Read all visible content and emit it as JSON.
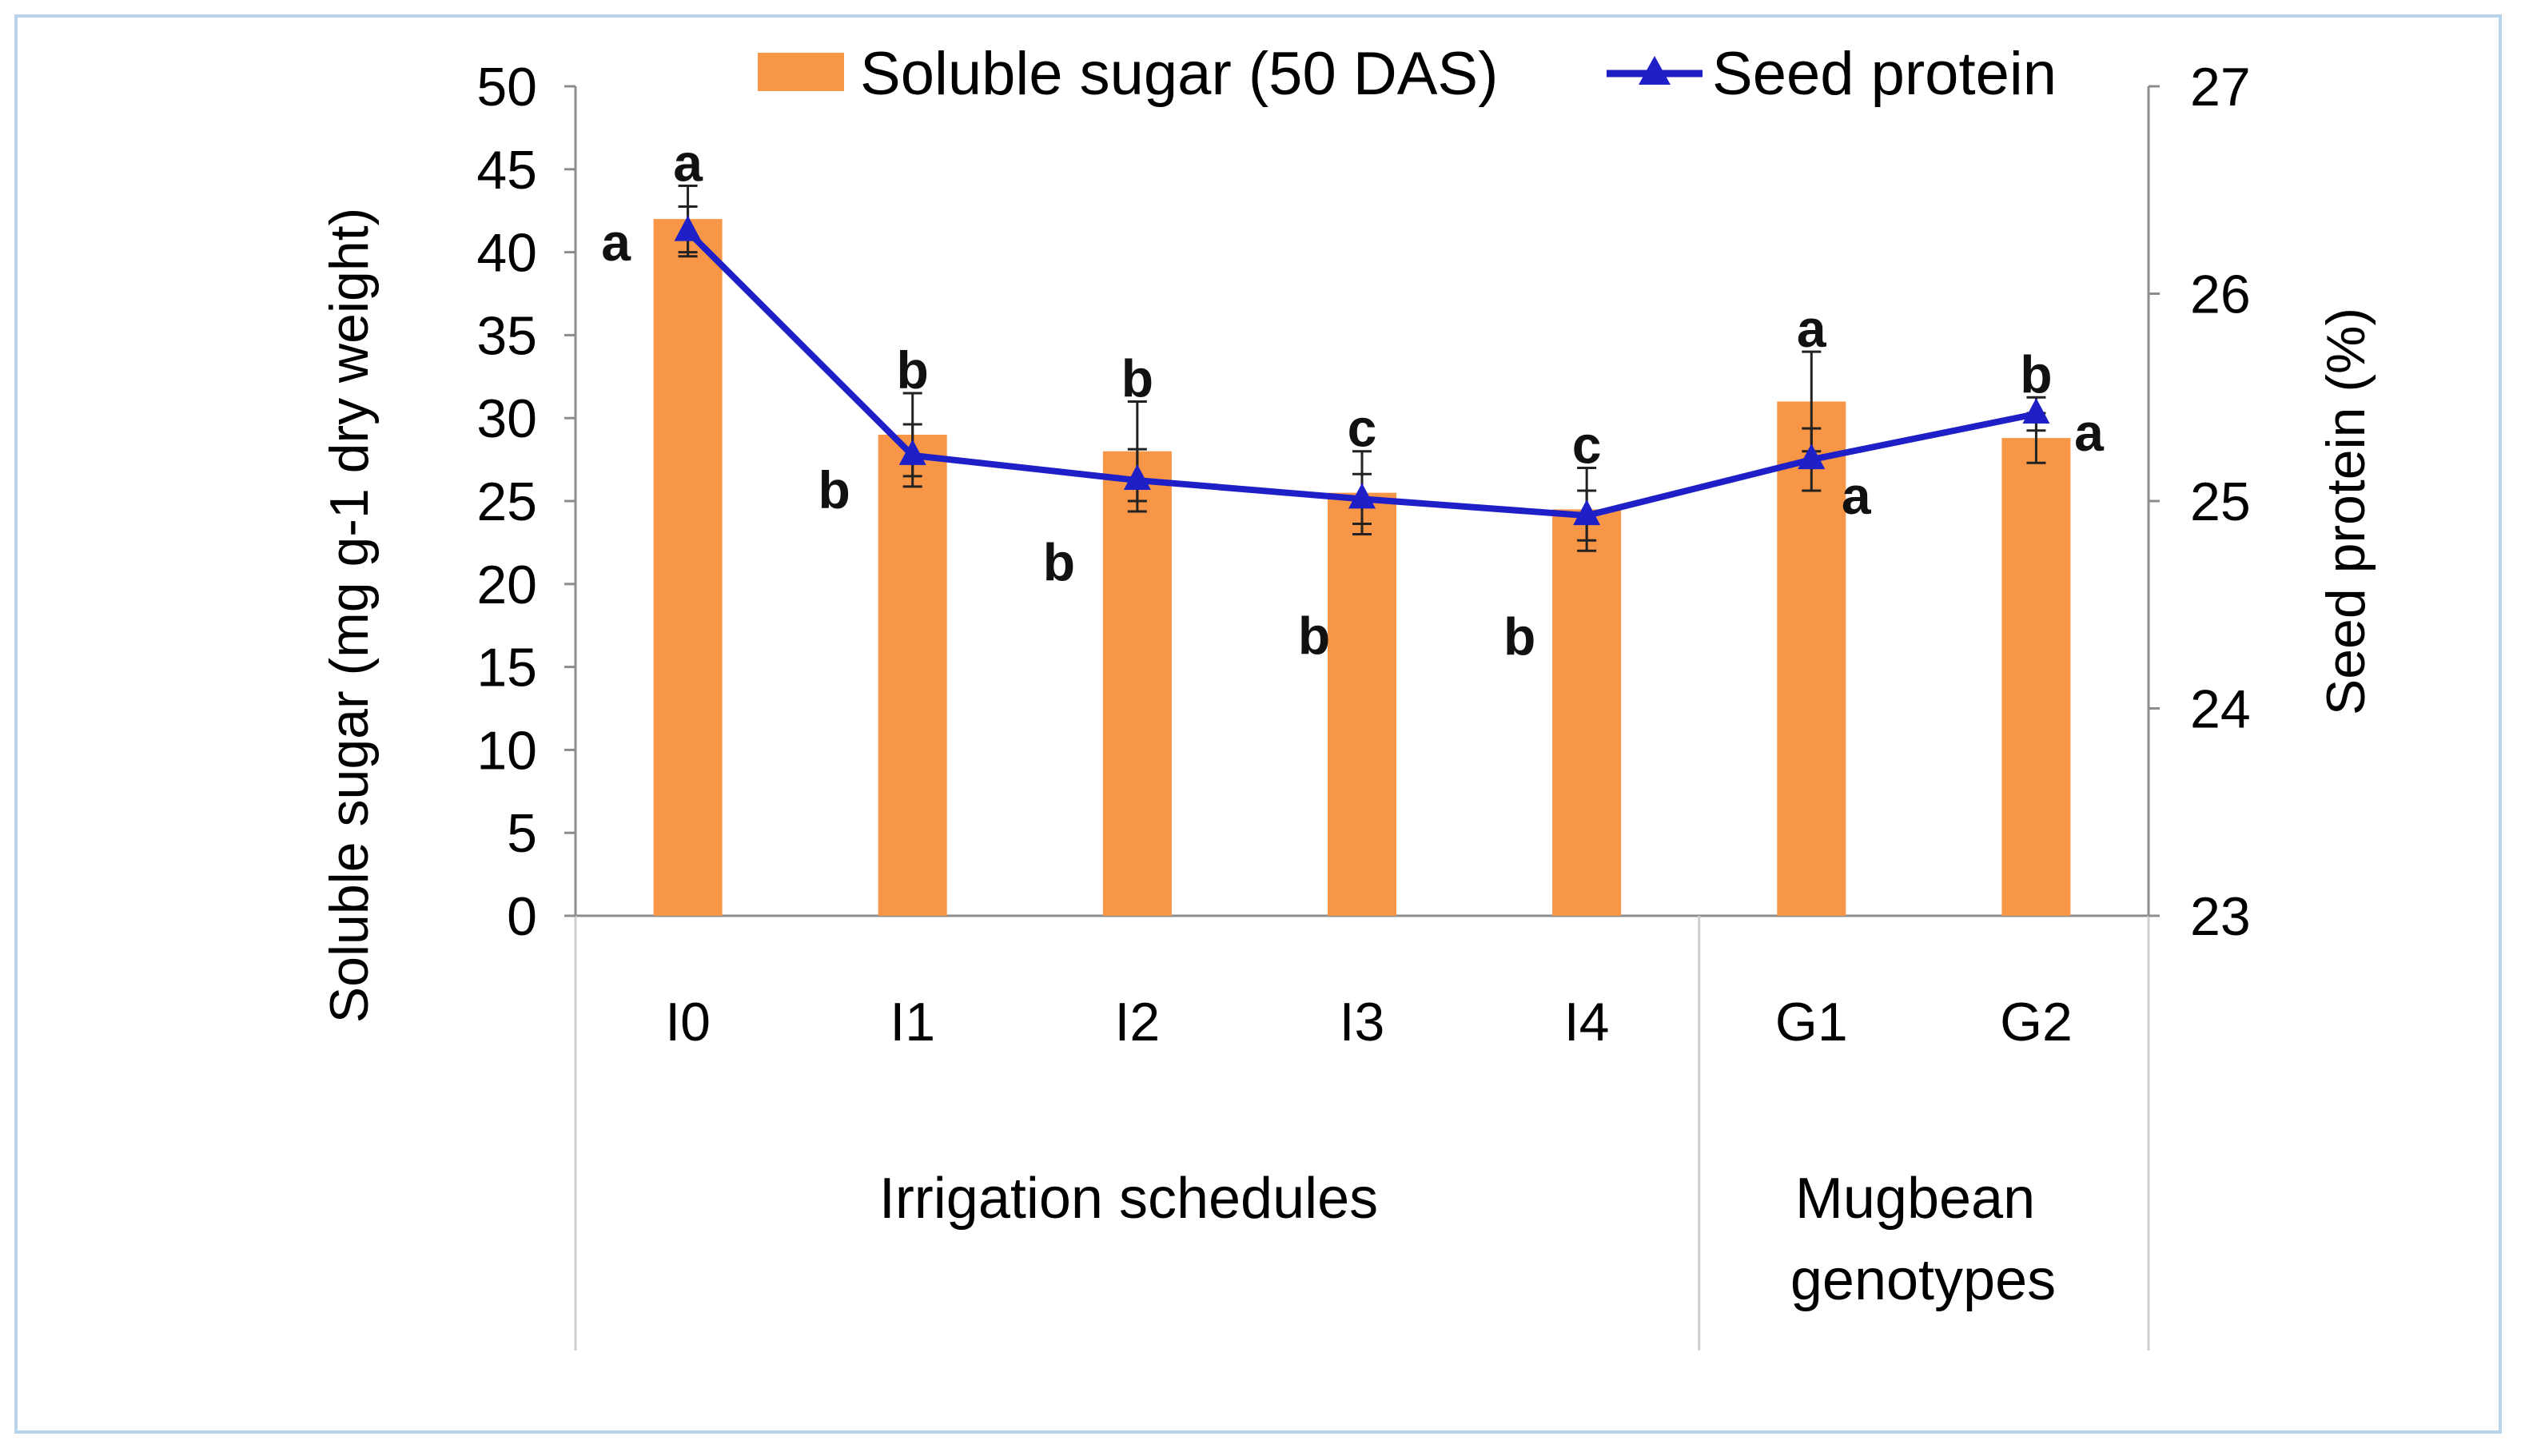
{
  "chart_data": {
    "type": "bar",
    "categories": [
      "I0",
      "I1",
      "I2",
      "I3",
      "I4",
      "G1",
      "G2"
    ],
    "groups": [
      {
        "label": "Irrigation schedules",
        "categories": [
          "I0",
          "I1",
          "I2",
          "I3",
          "I4"
        ]
      },
      {
        "label": "Mugbean genotypes",
        "categories": [
          "G1",
          "G2"
        ]
      }
    ],
    "series": [
      {
        "name": "Soluble sugar (50 DAS)",
        "type": "bar",
        "axis": "left",
        "color": "#f79646",
        "values": [
          42.0,
          29.0,
          28.0,
          25.5,
          24.5,
          31.0,
          28.8
        ],
        "error": [
          2.0,
          2.5,
          3.0,
          2.5,
          2.5,
          3.0,
          1.5
        ],
        "letters": [
          "a",
          "b",
          "b",
          "b",
          "b",
          "a",
          "a"
        ]
      },
      {
        "name": "Seed protein",
        "type": "line",
        "axis": "right",
        "color": "#1f1fc8",
        "marker": "triangle",
        "values": [
          26.3,
          25.22,
          25.1,
          25.01,
          24.93,
          25.2,
          25.42
        ],
        "error": [
          0.12,
          0.15,
          0.15,
          0.12,
          0.12,
          0.15,
          0.08
        ],
        "letters": [
          "a",
          "b",
          "b",
          "c",
          "c",
          "a",
          "b"
        ]
      }
    ],
    "ylabel": "Soluble sugar (mg g-1 dry weight)",
    "ylabel_right": "Seed protein (%)",
    "ylim": [
      0,
      50
    ],
    "yticks": [
      0,
      5,
      10,
      15,
      20,
      25,
      30,
      35,
      40,
      45,
      50
    ],
    "ylim_right": [
      23,
      27
    ],
    "yticks_right": [
      23,
      24,
      25,
      26,
      27
    ],
    "legend_position": "top",
    "grid": false
  }
}
